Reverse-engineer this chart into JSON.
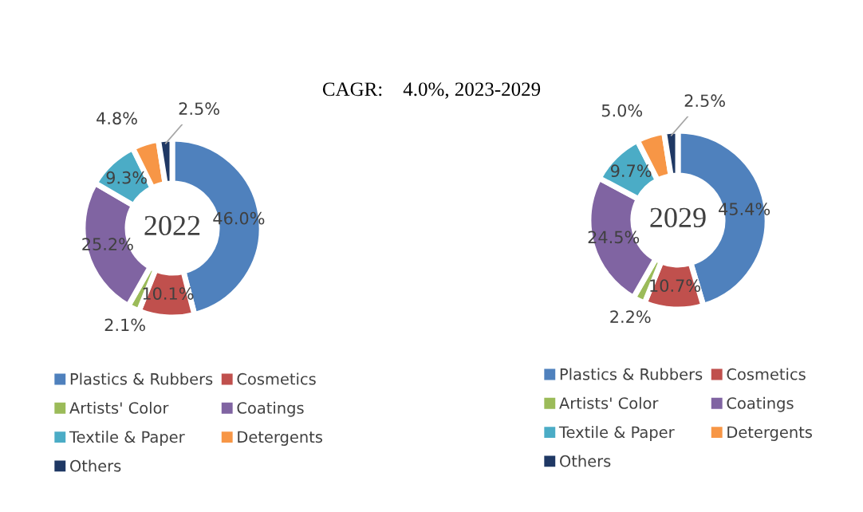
{
  "chart_data": [
    {
      "type": "donut",
      "title": "2022",
      "annotations": [
        "CAGR:    4.0%, 2023-2029"
      ],
      "categories": [
        "Plastics & Rubbers",
        "Cosmetics",
        "Artists' Color",
        "Coatings",
        "Textile & Paper",
        "Detergents",
        "Others"
      ],
      "values": [
        46.0,
        10.1,
        2.1,
        25.2,
        9.3,
        4.8,
        2.5
      ],
      "value_labels": [
        "46.0%",
        "10.1%",
        "2.1%",
        "25.2%",
        "9.3%",
        "4.8%",
        "2.5%"
      ],
      "colors": [
        "#4f81bd",
        "#c0504d",
        "#9bbb59",
        "#8064a2",
        "#4bacc6",
        "#f79646",
        "#1f3864"
      ],
      "legend": "bottom"
    },
    {
      "type": "donut",
      "title": "2029",
      "categories": [
        "Plastics & Rubbers",
        "Cosmetics",
        "Artists' Color",
        "Coatings",
        "Textile & Paper",
        "Detergents",
        "Others"
      ],
      "values": [
        45.4,
        10.7,
        2.2,
        24.5,
        9.7,
        5.0,
        2.5
      ],
      "value_labels": [
        "45.4%",
        "10.7%",
        "2.2%",
        "24.5%",
        "9.7%",
        "5.0%",
        "2.5%"
      ],
      "colors": [
        "#4f81bd",
        "#c0504d",
        "#9bbb59",
        "#8064a2",
        "#4bacc6",
        "#f79646",
        "#1f3864"
      ],
      "legend": "bottom"
    }
  ]
}
